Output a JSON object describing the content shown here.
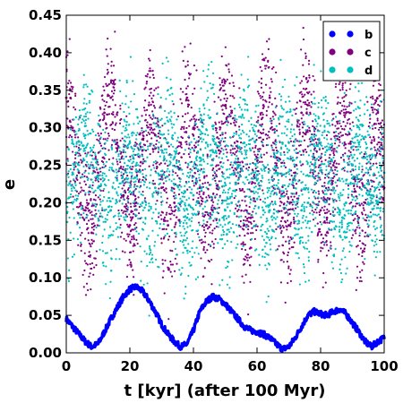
{
  "chart_data": {
    "type": "scatter",
    "xlabel": "t [kyr] (after 100 Myr)",
    "ylabel": "e",
    "xlim": [
      0,
      100
    ],
    "ylim": [
      0,
      0.45
    ],
    "xticks": [
      "0",
      "20",
      "40",
      "60",
      "80",
      "100"
    ],
    "yticks": [
      "0.00",
      "0.05",
      "0.10",
      "0.15",
      "0.20",
      "0.25",
      "0.30",
      "0.35",
      "0.40",
      "0.45"
    ],
    "grid": false,
    "legend_position": "top-right",
    "series": [
      {
        "name": "b",
        "color": "#0000ff",
        "x": [
          0,
          2,
          4,
          6,
          8,
          10,
          12,
          14,
          16,
          18,
          20,
          22,
          24,
          26,
          28,
          30,
          32,
          34,
          36,
          38,
          40,
          42,
          44,
          46,
          48,
          50,
          52,
          54,
          56,
          58,
          60,
          62,
          64,
          66,
          68,
          70,
          72,
          74,
          76,
          78,
          80,
          82,
          84,
          86,
          88,
          90,
          92,
          94,
          96,
          98,
          100
        ],
        "values": [
          0.045,
          0.035,
          0.025,
          0.015,
          0.008,
          0.012,
          0.028,
          0.045,
          0.06,
          0.075,
          0.085,
          0.088,
          0.082,
          0.07,
          0.055,
          0.038,
          0.025,
          0.015,
          0.008,
          0.012,
          0.03,
          0.055,
          0.068,
          0.075,
          0.072,
          0.065,
          0.055,
          0.045,
          0.035,
          0.03,
          0.028,
          0.025,
          0.02,
          0.012,
          0.005,
          0.008,
          0.02,
          0.035,
          0.05,
          0.055,
          0.052,
          0.05,
          0.055,
          0.058,
          0.052,
          0.04,
          0.028,
          0.015,
          0.008,
          0.015,
          0.02
        ]
      },
      {
        "name": "c",
        "color": "#800080",
        "x": [
          0,
          2,
          4,
          6,
          8,
          10,
          12,
          14,
          16,
          18,
          20,
          22,
          24,
          26,
          28,
          30,
          32,
          34,
          36,
          38,
          40,
          42,
          44,
          46,
          48,
          50,
          52,
          54,
          56,
          58,
          60,
          62,
          64,
          66,
          68,
          70,
          72,
          74,
          76,
          78,
          80,
          82,
          84,
          86,
          88,
          90,
          92,
          94,
          96,
          98,
          100
        ],
        "values": [
          0.34,
          0.3,
          0.24,
          0.19,
          0.16,
          0.24,
          0.32,
          0.34,
          0.28,
          0.21,
          0.17,
          0.2,
          0.27,
          0.33,
          0.29,
          0.22,
          0.17,
          0.2,
          0.28,
          0.34,
          0.3,
          0.22,
          0.17,
          0.19,
          0.27,
          0.33,
          0.32,
          0.24,
          0.17,
          0.18,
          0.26,
          0.33,
          0.34,
          0.26,
          0.18,
          0.17,
          0.24,
          0.32,
          0.33,
          0.26,
          0.19,
          0.18,
          0.25,
          0.32,
          0.32,
          0.25,
          0.18,
          0.2,
          0.28,
          0.32,
          0.22
        ]
      },
      {
        "name": "d",
        "color": "#00bfbf",
        "x": [
          0,
          2,
          4,
          6,
          8,
          10,
          12,
          14,
          16,
          18,
          20,
          22,
          24,
          26,
          28,
          30,
          32,
          34,
          36,
          38,
          40,
          42,
          44,
          46,
          48,
          50,
          52,
          54,
          56,
          58,
          60,
          62,
          64,
          66,
          68,
          70,
          72,
          74,
          76,
          78,
          80,
          82,
          84,
          86,
          88,
          90,
          92,
          94,
          96,
          98,
          100
        ],
        "values": [
          0.2,
          0.24,
          0.27,
          0.29,
          0.27,
          0.22,
          0.19,
          0.19,
          0.23,
          0.27,
          0.28,
          0.25,
          0.2,
          0.19,
          0.22,
          0.27,
          0.28,
          0.26,
          0.2,
          0.18,
          0.21,
          0.26,
          0.28,
          0.27,
          0.22,
          0.19,
          0.2,
          0.25,
          0.28,
          0.27,
          0.23,
          0.19,
          0.19,
          0.24,
          0.28,
          0.28,
          0.23,
          0.19,
          0.2,
          0.25,
          0.28,
          0.27,
          0.22,
          0.19,
          0.2,
          0.25,
          0.28,
          0.26,
          0.21,
          0.2,
          0.24
        ]
      }
    ]
  }
}
